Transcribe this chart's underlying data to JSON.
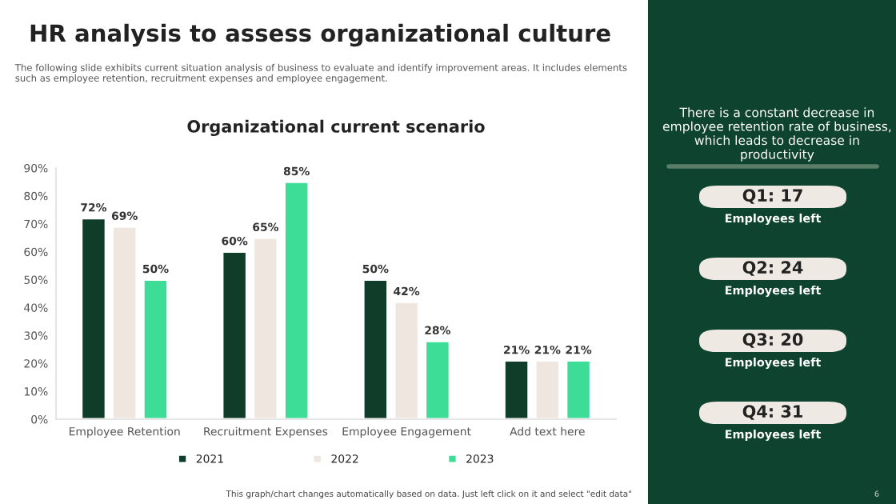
{
  "chart_data": [
    {
      "type": "other",
      "title": "HR analysis to assess organizational culture",
      "subtitle": "The following slide exhibits current situation analysis of business to evaluate and identify improvement areas. It includes elements such as employee retention, recruitment expenses and employee engagement.",
      "annotations": [
        "There is a constant decrease in employee retention rate of business, which leads to decrease in productivity",
        "Q1: 17",
        "Employees left",
        "Q2: 24",
        "Employees left",
        "Q3: 20",
        "Employees left",
        "Q4: 31",
        "Employees left",
        "This graph/chart changes automatically based on data. Just left click on it and select \"edit data\"",
        "6"
      ]
    },
    {
      "type": "bar",
      "title": "Organizational current scenario",
      "categories": [
        "Employee Retention",
        "Recruitment Expenses",
        "Employee Engagement",
        "Add text here"
      ],
      "series": [
        {
          "name": "2021",
          "color": "#0f3d2a",
          "values": [
            72,
            60,
            50,
            21
          ],
          "value_labels": [
            "72%",
            "60%",
            "50%",
            "21%"
          ]
        },
        {
          "name": "2022",
          "color": "#efe6e0",
          "values": [
            69,
            65,
            42,
            21
          ],
          "value_labels": [
            "69%",
            "65%",
            "42%",
            "21%"
          ]
        },
        {
          "name": "2023",
          "color": "#3ddc97",
          "values": [
            50,
            85,
            28,
            21
          ],
          "value_labels": [
            "50%",
            "85%",
            "28%",
            "21%"
          ]
        }
      ],
      "ylim": [
        0,
        90
      ],
      "yticks": [
        {
          "value": 0,
          "label": "0%"
        },
        {
          "value": 10,
          "label": "10%"
        },
        {
          "value": 20,
          "label": "20%"
        },
        {
          "value": 30,
          "label": "30%"
        },
        {
          "value": 40,
          "label": "40%"
        },
        {
          "value": 50,
          "label": "50%"
        },
        {
          "value": 60,
          "label": "60%"
        },
        {
          "value": 70,
          "label": "70%"
        },
        {
          "value": 80,
          "label": "80%"
        },
        {
          "value": 90,
          "label": "90%"
        }
      ],
      "grid": false,
      "legend": "bottom"
    }
  ]
}
